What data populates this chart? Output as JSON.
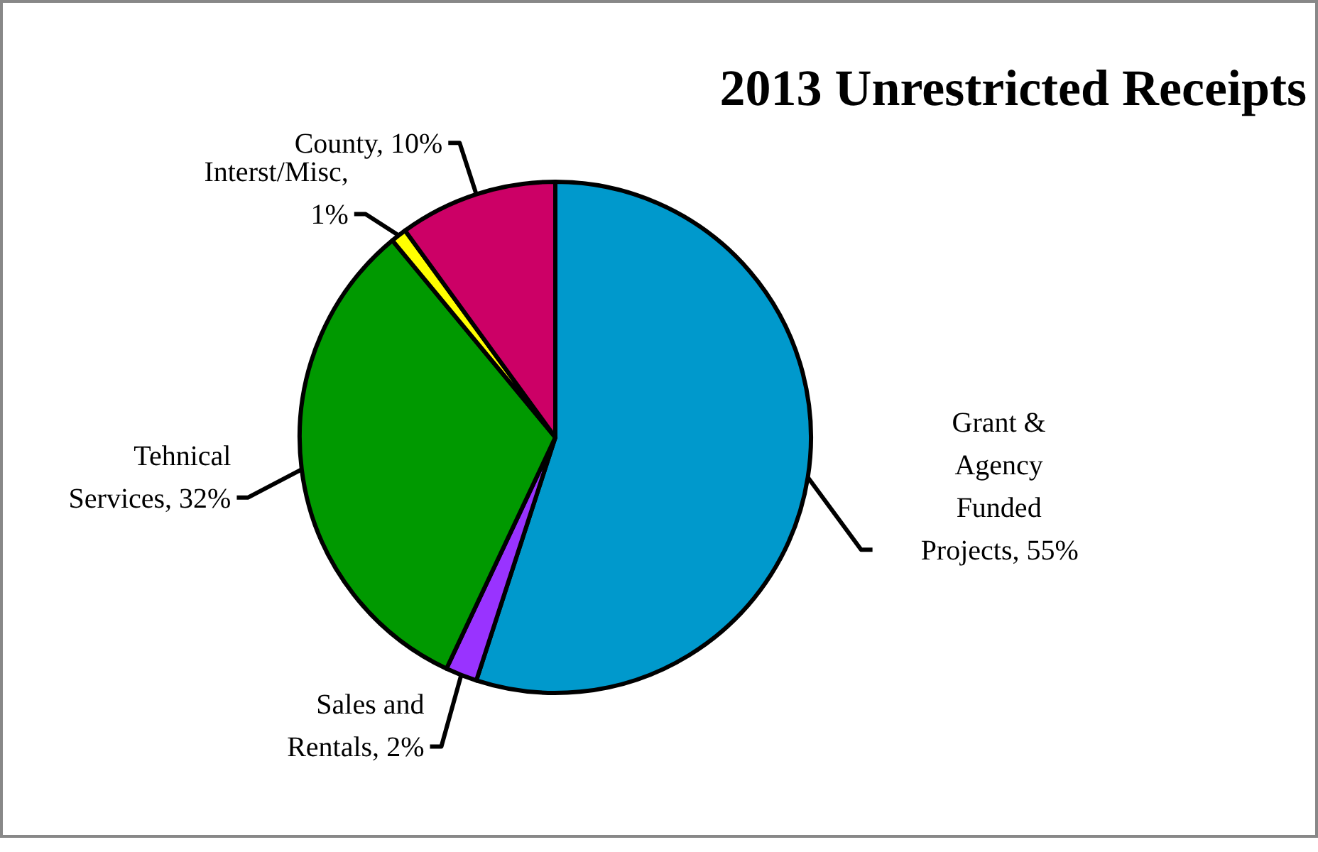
{
  "chart_data": {
    "type": "pie",
    "title": "2013  Unrestricted Receipts",
    "categories": [
      "Grant & Agency Funded Projects",
      "Sales and Rentals",
      "Tehnical Services",
      "Interst/Misc",
      "County"
    ],
    "values": [
      55,
      2,
      32,
      1,
      10
    ],
    "value_labels": [
      ", 55%",
      ", 2%",
      ", 32%",
      ", 1%",
      ", 10%"
    ],
    "colors": [
      "#0099cc",
      "#9933ff",
      "#009900",
      "#ffff00",
      "#cc0066"
    ]
  }
}
